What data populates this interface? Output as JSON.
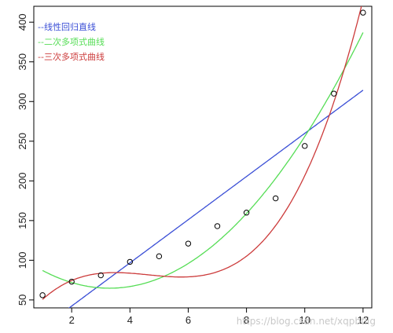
{
  "chart_data": {
    "type": "scatter",
    "title": "",
    "xlabel": "",
    "ylabel": "",
    "xlim": [
      0.7,
      12.3
    ],
    "ylim": [
      40,
      420
    ],
    "x_ticks": [
      2,
      4,
      6,
      8,
      10,
      12
    ],
    "y_ticks": [
      50,
      100,
      150,
      200,
      250,
      300,
      350,
      400
    ],
    "grid": false,
    "legend_position": "top-left",
    "points": {
      "x": [
        1,
        2,
        3,
        4,
        5,
        6,
        7,
        8,
        9,
        10,
        11,
        12
      ],
      "y": [
        56,
        73,
        81,
        98,
        105,
        121,
        143,
        160,
        178,
        244,
        310,
        412
      ]
    },
    "series": [
      {
        "name": "--线性回归直线",
        "kind": "linear",
        "color": "#3b4fd6",
        "coef": [
          -12.1,
          27.2
        ]
      },
      {
        "name": "--二次多项式曲线",
        "kind": "quadratic",
        "color": "#55dd55",
        "coef": [
          110.9,
          -28.0,
          4.25
        ]
      },
      {
        "name": "--三次多项式曲线",
        "kind": "cubic",
        "color": "#cc3b3b",
        "coef": [
          6.6,
          56.0,
          -12.9,
          0.93
        ]
      }
    ]
  },
  "watermark": "https://blog.csdn.net/xqpbtlig"
}
